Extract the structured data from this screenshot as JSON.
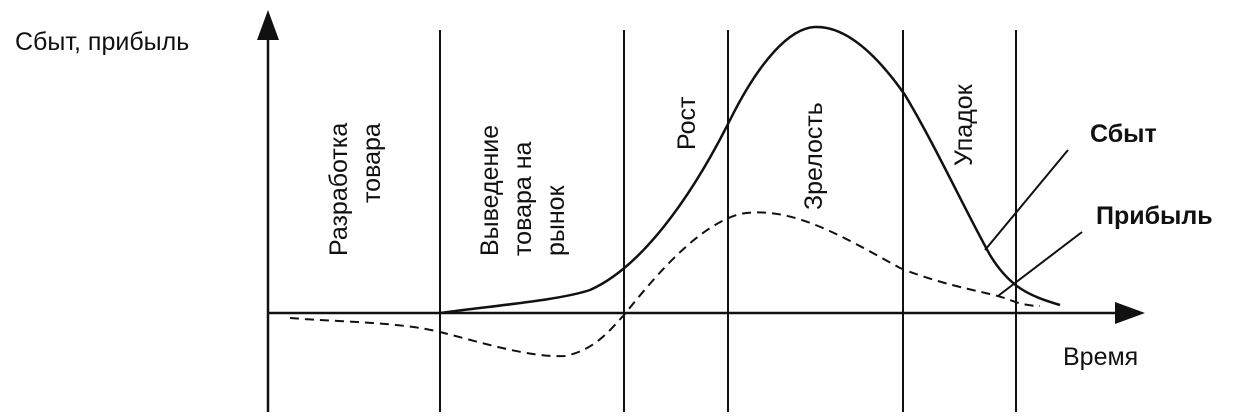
{
  "axes": {
    "y_label": "Сбыт, прибыль",
    "x_label": "Время"
  },
  "stages": [
    {
      "key": "development",
      "lines": [
        "Разработка",
        "товара"
      ]
    },
    {
      "key": "introduction",
      "lines": [
        "Выведение",
        "товара на",
        "рынок"
      ]
    },
    {
      "key": "growth",
      "lines": [
        "Рост"
      ]
    },
    {
      "key": "maturity",
      "lines": [
        "Зрелость"
      ]
    },
    {
      "key": "decline",
      "lines": [
        "Упадок"
      ]
    }
  ],
  "legend": {
    "sales": "Сбыт",
    "profit": "Прибыль"
  },
  "colors": {
    "ink": "#111111",
    "background": "#ffffff"
  }
}
